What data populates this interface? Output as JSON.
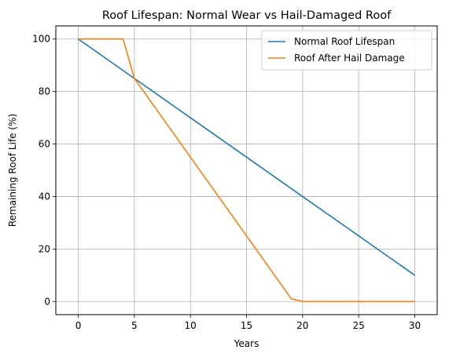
{
  "chart_data": {
    "type": "line",
    "title": "Roof Lifespan: Normal Wear vs Hail-Damaged Roof",
    "xlabel": "Years",
    "ylabel": "Remaining Roof Life (%)",
    "xlim": [
      -2,
      32
    ],
    "ylim": [
      -5,
      105
    ],
    "xticks": [
      0,
      5,
      10,
      15,
      20,
      25,
      30
    ],
    "yticks": [
      0,
      20,
      40,
      60,
      80,
      100
    ],
    "grid": true,
    "legend_position": "top-right",
    "series": [
      {
        "name": "Normal Roof Lifespan",
        "color": "#1f77b4",
        "x": [
          0,
          30
        ],
        "y": [
          100,
          10
        ]
      },
      {
        "name": "Roof After Hail Damage",
        "color": "#ff7f0e",
        "x": [
          0,
          4,
          5,
          19,
          20,
          30
        ],
        "y": [
          100,
          100,
          85,
          1,
          0,
          0
        ]
      }
    ]
  }
}
